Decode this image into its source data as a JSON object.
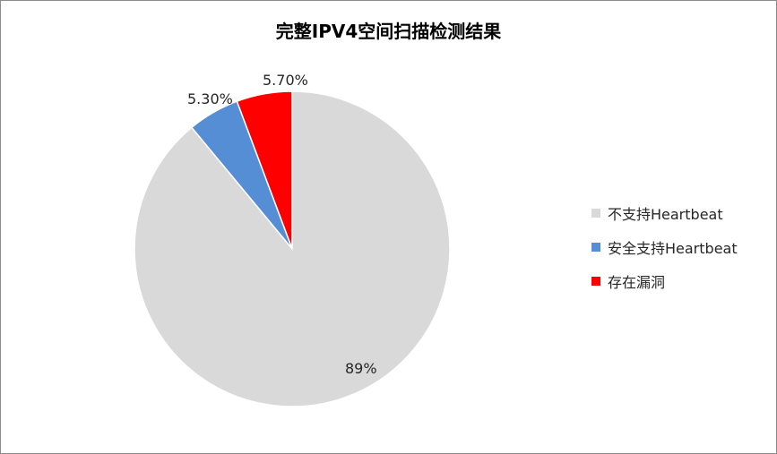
{
  "chart_data": {
    "type": "pie",
    "title": "完整IPV4空间扫描检测结果",
    "categories": [
      "不支持Heartbeat",
      "安全支持Heartbeat",
      "存在漏洞"
    ],
    "values": [
      89.0,
      5.3,
      5.7
    ],
    "data_labels": [
      "89%",
      "5.30%",
      "5.70%"
    ],
    "colors": [
      "#d9d9d9",
      "#558ed5",
      "#ff0000"
    ],
    "start_angle": "12 o'clock",
    "direction": "counterclockwise",
    "legend": "right"
  }
}
